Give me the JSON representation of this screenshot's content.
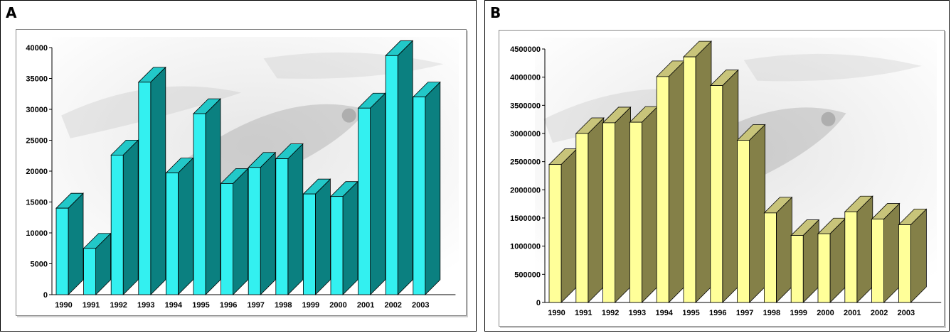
{
  "colors": {
    "chart_a_front": "#33f0f0",
    "chart_a_side": "#0b8080",
    "chart_a_top": "#22c8c8",
    "chart_b_front": "#ffff99",
    "chart_b_side": "#848048",
    "chart_b_top": "#c8c47a",
    "background_fish": "#cfcfcf"
  },
  "panels": {
    "a": {
      "label": "A"
    },
    "b": {
      "label": "B"
    }
  },
  "chart_data": [
    {
      "type": "bar",
      "title": "",
      "xlabel": "",
      "ylabel": "",
      "categories": [
        "1990",
        "1991",
        "1992",
        "1993",
        "1994",
        "1995",
        "1996",
        "1997",
        "1998",
        "1999",
        "2000",
        "2001",
        "2002",
        "2003"
      ],
      "values": [
        14000,
        7500,
        22600,
        34400,
        19700,
        29300,
        18000,
        20600,
        22000,
        16300,
        15900,
        30200,
        38700,
        32000
      ],
      "ylim": [
        0,
        40000
      ],
      "yticks": [
        "0",
        "5000",
        "10000",
        "15000",
        "20000",
        "25000",
        "30000",
        "35000",
        "40000"
      ],
      "style": "3d-column",
      "grid": false
    },
    {
      "type": "bar",
      "title": "",
      "xlabel": "",
      "ylabel": "",
      "categories": [
        "1990",
        "1991",
        "1992",
        "1993",
        "1994",
        "1995",
        "1996",
        "1997",
        "1998",
        "1999",
        "2000",
        "2001",
        "2002",
        "2003"
      ],
      "values": [
        2450000,
        3000000,
        3190000,
        3200000,
        4010000,
        4360000,
        3850000,
        2880000,
        1590000,
        1190000,
        1220000,
        1610000,
        1480000,
        1380000
      ],
      "ylim": [
        0,
        4500000
      ],
      "yticks": [
        "0",
        "500000",
        "1000000",
        "1500000",
        "2000000",
        "2500000",
        "3000000",
        "3500000",
        "4000000",
        "4500000"
      ],
      "style": "3d-column",
      "grid": false
    }
  ]
}
